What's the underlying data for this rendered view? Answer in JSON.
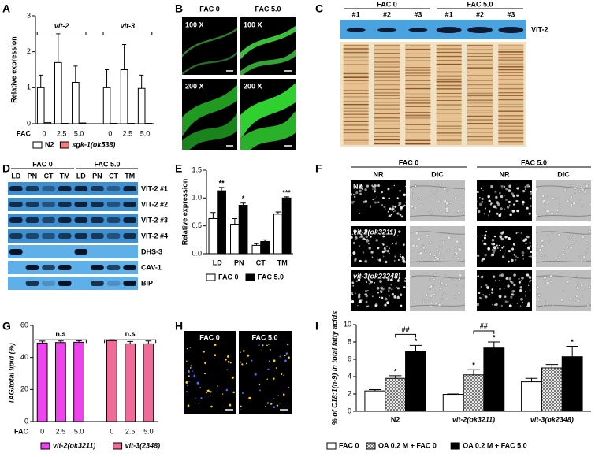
{
  "chart_data": [
    {
      "type": "bar",
      "panel": "A",
      "ylabel": "Relative expression",
      "xlabel": "FAC",
      "group_labels": [
        "vit-2",
        "vit-3"
      ],
      "categories": [
        "0",
        "2.5",
        "5.0",
        "0",
        "2.5",
        "5.0"
      ],
      "series": [
        {
          "name": "N2",
          "color": "#ffffff",
          "values": [
            1.0,
            1.7,
            1.15,
            1.0,
            1.5,
            0.98
          ],
          "errors": [
            0.35,
            0.8,
            0.45,
            0.5,
            0.7,
            0.37
          ]
        },
        {
          "name": "sgk-1(ok538)",
          "color": "#f08080",
          "values": [
            0.03,
            0.01,
            0.02,
            0.01,
            0.01,
            0.01
          ]
        }
      ],
      "ylim": [
        0,
        3
      ],
      "yticks": [
        0,
        1,
        2,
        3
      ]
    },
    {
      "type": "bar",
      "panel": "E",
      "ylabel": "Relative expression",
      "categories": [
        "LD",
        "PN",
        "CT",
        "TM"
      ],
      "series": [
        {
          "name": "FAC 0",
          "color": "#ffffff",
          "values": [
            0.63,
            0.53,
            0.15,
            0.71
          ],
          "errors": [
            0.11,
            0.1,
            0.03,
            0.04
          ]
        },
        {
          "name": "FAC 5.0",
          "color": "#000000",
          "values": [
            1.13,
            0.87,
            0.22,
            1.0
          ],
          "errors": [
            0.06,
            0.04,
            0.03,
            0.02
          ],
          "marks": [
            "**",
            "*",
            null,
            "***"
          ]
        }
      ],
      "ylim": [
        0,
        1.5
      ],
      "yticks": [
        {
          "value": 0,
          "label": "0.0"
        },
        {
          "value": 0.5,
          "label": "0.5"
        },
        {
          "value": 1,
          "label": "1.0"
        },
        {
          "value": 1.5,
          "label": "1.5"
        }
      ]
    },
    {
      "type": "bar",
      "panel": "G",
      "ylabel": "TAG/total lipid (%)",
      "xlabel": "FAC",
      "group_labels": [
        "n.s",
        "n.s"
      ],
      "categories": [
        "0",
        "2.5",
        "5.0",
        "0",
        "2.5",
        "5.0"
      ],
      "series": [
        {
          "name": "vit-2(ok3211)",
          "color": "#ee44ee",
          "values": [
            49,
            49.3,
            49.5,
            null,
            null,
            null
          ],
          "errors": [
            1.2,
            1.0,
            1.0,
            null,
            null,
            null
          ]
        },
        {
          "name": "vit-3(2348)",
          "color": "#f06a9a",
          "values": [
            null,
            null,
            null,
            50.5,
            48.5,
            48.5
          ],
          "errors": [
            null,
            null,
            null,
            0.6,
            1.5,
            1.8
          ]
        }
      ],
      "ylim": [
        0,
        60
      ],
      "yticks": [
        0,
        20,
        40,
        60
      ]
    },
    {
      "type": "bar",
      "panel": "I",
      "ylabel": "% of C18:1(n-9) in total fatty acids",
      "pair_labels": [
        "##",
        "##"
      ],
      "categories": [
        "N2",
        "vit-2(ok3211)",
        "vit-3(ok2348)"
      ],
      "series": [
        {
          "name": "FAC 0",
          "color": "#ffffff",
          "values": [
            2.35,
            1.95,
            3.4
          ],
          "errors": [
            0.15,
            0.05,
            0.4
          ]
        },
        {
          "name": "OA 0.2 M + FAC 0",
          "color": "#ffffff",
          "pattern": "hatch",
          "values": [
            3.8,
            4.2,
            5.0
          ],
          "errors": [
            0.3,
            0.6,
            0.4
          ],
          "marks": [
            "*",
            "*",
            null
          ]
        },
        {
          "name": "OA 0.2 M + FAC 5.0",
          "color": "#000000",
          "values": [
            6.9,
            7.3,
            6.3
          ],
          "errors": [
            0.7,
            0.7,
            1.2
          ],
          "marks": [
            "*",
            "*",
            "*"
          ]
        }
      ],
      "ylim": [
        0,
        10
      ],
      "yticks": [
        0,
        2,
        4,
        6,
        8,
        10
      ]
    }
  ],
  "panels": {
    "B": {
      "label": "B",
      "columns": [
        "FAC 0",
        "FAC 5.0"
      ],
      "tags": [
        "100 X",
        "100 X",
        "200 X",
        "200 X"
      ]
    },
    "C": {
      "label": "C",
      "columns": [
        "FAC 0",
        "FAC 5.0"
      ],
      "lanes": [
        "#1",
        "#2",
        "#3",
        "#1",
        "#2",
        "#3"
      ],
      "band": "VIT-2"
    },
    "D": {
      "label": "D",
      "columns": [
        "FAC 0",
        "FAC 5.0"
      ],
      "lanes": [
        "LD",
        "PN",
        "CT",
        "TM",
        "LD",
        "PN",
        "CT",
        "TM"
      ],
      "rows": [
        "VIT-2 #1",
        "VIT-2 #2",
        "VIT-2 #3",
        "VIT-2 #4",
        "DHS-3",
        "CAV-1",
        "BIP"
      ]
    },
    "F": {
      "label": "F",
      "columns": [
        "FAC 0",
        "FAC 5.0"
      ],
      "subcolumns": [
        "NR",
        "DIC",
        "NR",
        "DIC"
      ],
      "rows": [
        "N2",
        "vit-2(ok3211)",
        "vit-3(ok23248)"
      ]
    },
    "H": {
      "label": "H",
      "columns": [
        "FAC 0",
        "FAC 5.0"
      ]
    }
  }
}
